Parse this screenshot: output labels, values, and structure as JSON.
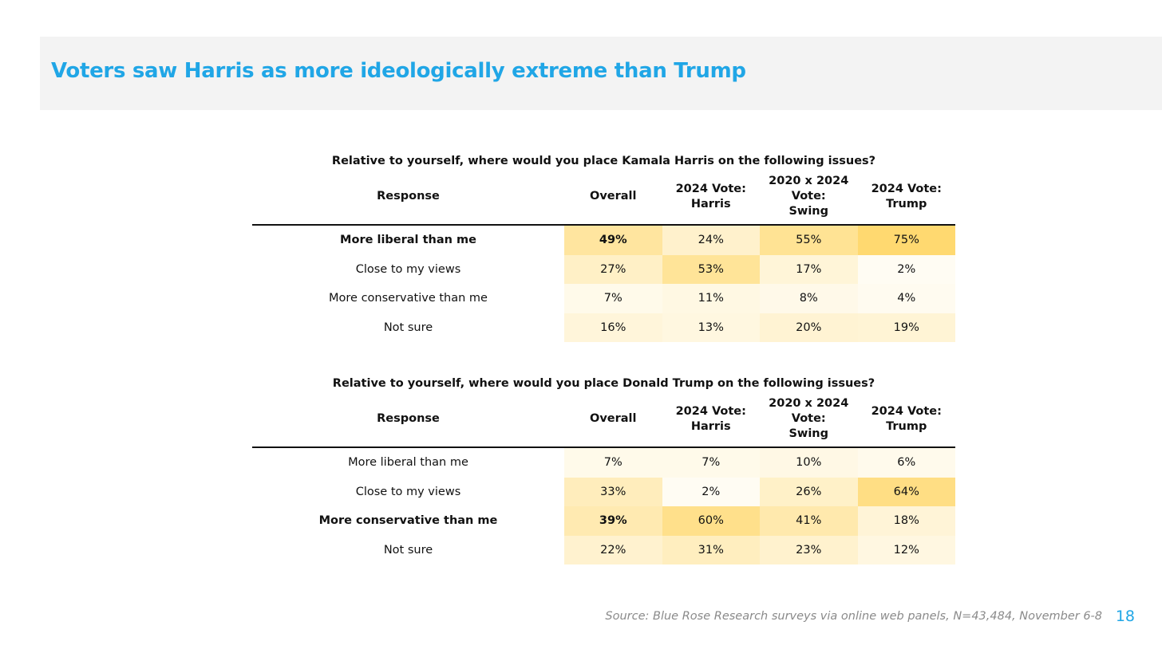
{
  "title": "Voters saw Harris as more ideologically extreme than Trump",
  "source": "Source: Blue Rose Research surveys via online web panels, N=43,484, November 6-8",
  "page_number": "18",
  "colors": {
    "title": "#20a6e6",
    "band": "#f3f3f3",
    "heat_low": "#fffdf7",
    "heat_high": "#ffd970"
  },
  "chart_data": [
    {
      "type": "table",
      "title": "Relative to yourself, where would you place Kamala Harris on the following issues?",
      "response_header": "Response",
      "columns": [
        {
          "line1": "Overall",
          "line2": "",
          "line3": ""
        },
        {
          "line1": "2024 Vote:",
          "line2": "Harris",
          "line3": ""
        },
        {
          "line1": "2020 x 2024",
          "line2": "Vote:",
          "line3": "Swing"
        },
        {
          "line1": "2024 Vote:",
          "line2": "Trump",
          "line3": ""
        }
      ],
      "rows": [
        {
          "label": "More liberal than me",
          "bold": true,
          "values": [
            49,
            24,
            55,
            75
          ],
          "display": [
            "49%",
            "24%",
            "55%",
            "75%"
          ]
        },
        {
          "label": "Close to my views",
          "bold": false,
          "values": [
            27,
            53,
            17,
            2
          ],
          "display": [
            "27%",
            "53%",
            "17%",
            "2%"
          ]
        },
        {
          "label": "More conservative than me",
          "bold": false,
          "values": [
            7,
            11,
            8,
            4
          ],
          "display": [
            "7%",
            "11%",
            "8%",
            "4%"
          ]
        },
        {
          "label": "Not sure",
          "bold": false,
          "values": [
            16,
            13,
            20,
            19
          ],
          "display": [
            "16%",
            "13%",
            "20%",
            "19%"
          ]
        }
      ]
    },
    {
      "type": "table",
      "title": "Relative to yourself, where would you place Donald Trump on the following issues?",
      "response_header": "Response",
      "columns": [
        {
          "line1": "Overall",
          "line2": "",
          "line3": ""
        },
        {
          "line1": "2024 Vote:",
          "line2": "Harris",
          "line3": ""
        },
        {
          "line1": "2020 x 2024",
          "line2": "Vote:",
          "line3": "Swing"
        },
        {
          "line1": "2024 Vote:",
          "line2": "Trump",
          "line3": ""
        }
      ],
      "rows": [
        {
          "label": "More liberal than me",
          "bold": false,
          "values": [
            7,
            7,
            10,
            6
          ],
          "display": [
            "7%",
            "7%",
            "10%",
            "6%"
          ]
        },
        {
          "label": "Close to my views",
          "bold": false,
          "values": [
            33,
            2,
            26,
            64
          ],
          "display": [
            "33%",
            "2%",
            "26%",
            "64%"
          ]
        },
        {
          "label": "More conservative than me",
          "bold": true,
          "values": [
            39,
            60,
            41,
            18
          ],
          "display": [
            "39%",
            "60%",
            "41%",
            "18%"
          ]
        },
        {
          "label": "Not sure",
          "bold": false,
          "values": [
            22,
            31,
            23,
            12
          ],
          "display": [
            "22%",
            "31%",
            "23%",
            "12%"
          ]
        }
      ]
    }
  ]
}
